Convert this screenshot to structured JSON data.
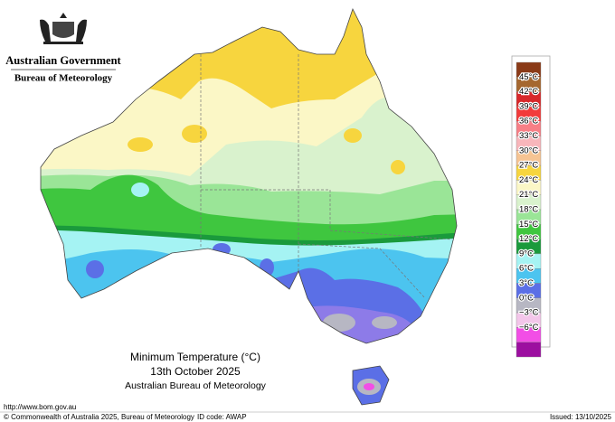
{
  "header": {
    "government": "Australian Government",
    "agency": "Bureau of Meteorology"
  },
  "legend": {
    "labels": [
      "45°C",
      "42°C",
      "39°C",
      "36°C",
      "33°C",
      "30°C",
      "27°C",
      "24°C",
      "21°C",
      "18°C",
      "15°C",
      "12°C",
      "9°C",
      "6°C",
      "3°C",
      "0°C",
      "−3°C",
      "−6°C"
    ],
    "colors": [
      "#8a3a17",
      "#a5672f",
      "#d8282a",
      "#f23b3b",
      "#f77f86",
      "#f8b6bb",
      "#f6c493",
      "#f7d53e",
      "#fbf7c6",
      "#d9f2cd",
      "#9ae597",
      "#3fc63f",
      "#1a9a3c",
      "#a5f3f3",
      "#4cc4ef",
      "#5b6fe6",
      "#b7b7c3",
      "#f3c6ea",
      "#f24ee6",
      "#9c0fa0"
    ]
  },
  "title": {
    "line1": "Minimum Temperature (°C)",
    "line2": "13th October 2025",
    "line3": "Australian Bureau of Meteorology"
  },
  "footer": {
    "url": "http://www.bom.gov.au",
    "copyright": "© Commonwealth of Australia 2025, Bureau of Meteorology",
    "id_code": "ID code: AWAP",
    "issued": "Issued: 13/10/2025"
  }
}
